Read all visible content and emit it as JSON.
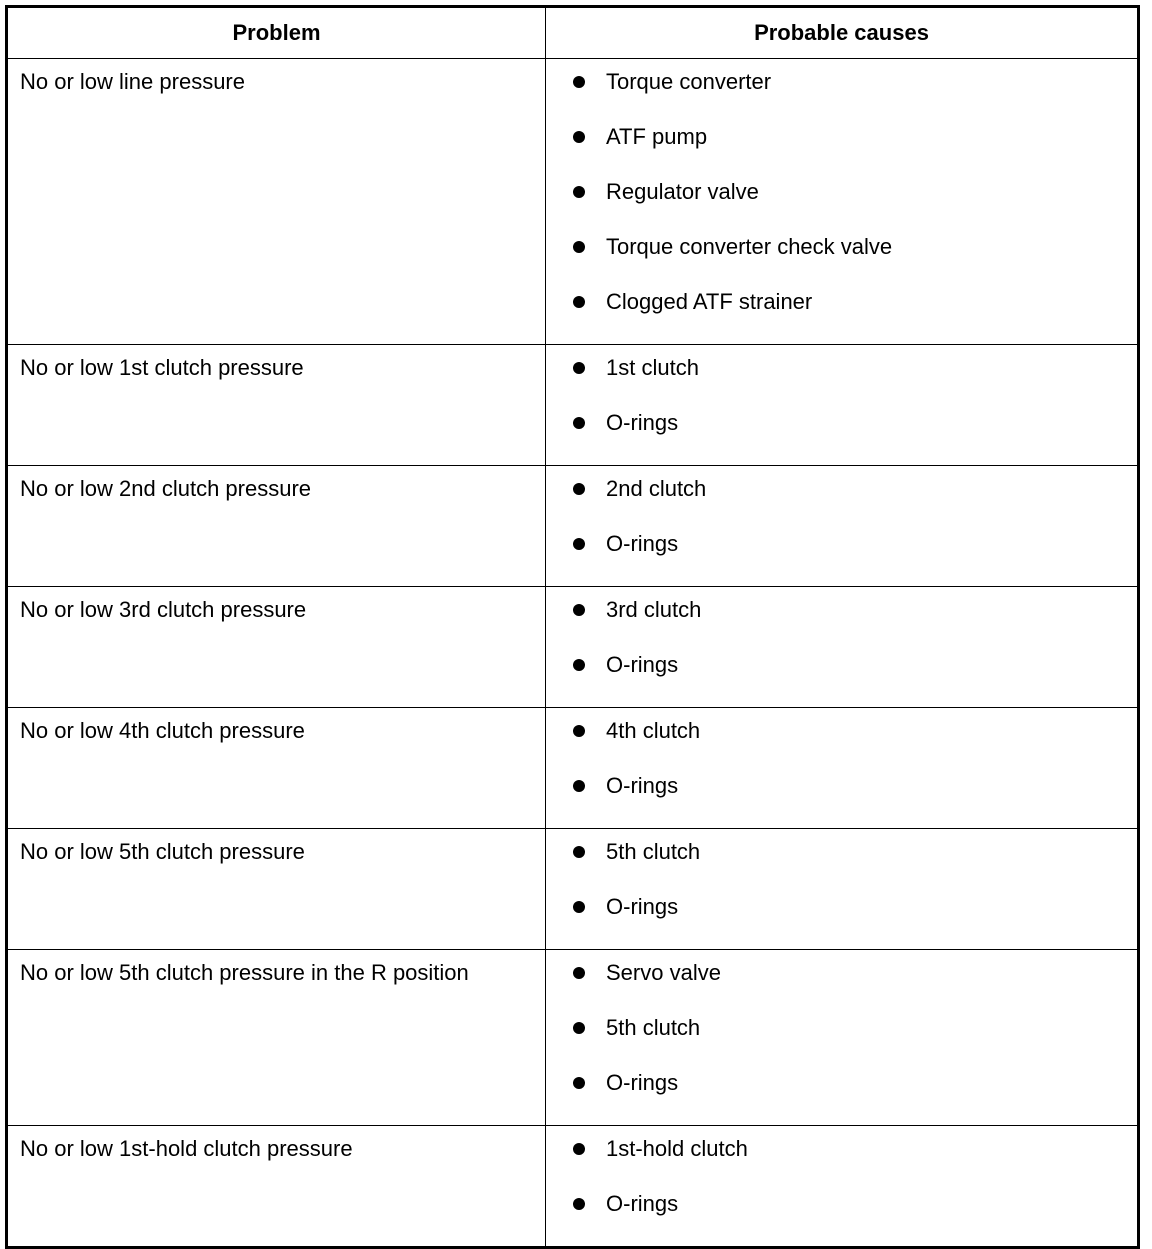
{
  "headers": {
    "problem": "Problem",
    "causes": "Probable causes"
  },
  "rows": [
    {
      "problem": "No or low line pressure",
      "causes": [
        "Torque converter",
        "ATF pump",
        "Regulator valve",
        "Torque converter check valve",
        "Clogged ATF strainer"
      ]
    },
    {
      "problem": "No or low 1st clutch pressure",
      "causes": [
        "1st clutch",
        "O-rings"
      ]
    },
    {
      "problem": "No or low 2nd clutch pressure",
      "causes": [
        "2nd clutch",
        "O-rings"
      ]
    },
    {
      "problem": "No or low 3rd clutch pressure",
      "causes": [
        "3rd clutch",
        "O-rings"
      ]
    },
    {
      "problem": "No or low 4th clutch pressure",
      "causes": [
        "4th clutch",
        "O-rings"
      ]
    },
    {
      "problem": "No or low 5th clutch pressure",
      "causes": [
        "5th clutch",
        "O-rings"
      ]
    },
    {
      "problem": "No or low 5th clutch pressure in the R position",
      "causes": [
        "Servo valve",
        "5th clutch",
        "O-rings"
      ]
    },
    {
      "problem": "No or low 1st-hold clutch pressure",
      "causes": [
        "1st-hold clutch",
        "O-rings"
      ]
    }
  ]
}
